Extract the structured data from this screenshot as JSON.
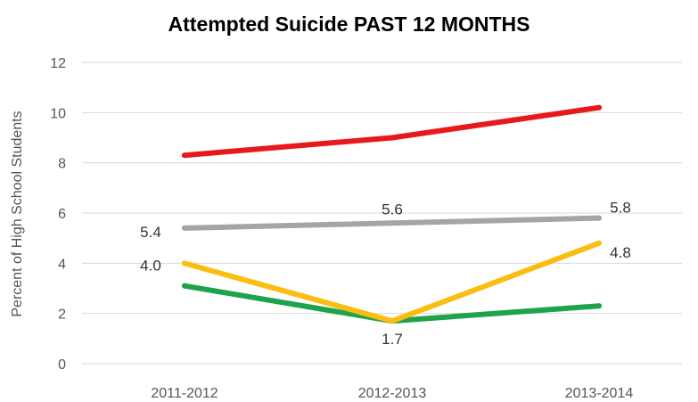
{
  "chart_data": {
    "type": "line",
    "title": "Attempted Suicide PAST 12 MONTHS",
    "xlabel": "",
    "ylabel": "Percent of High School Students",
    "categories": [
      "2011-2012",
      "2012-2013",
      "2013-2014"
    ],
    "ylim": [
      0,
      12
    ],
    "yticks": [
      "0",
      "2",
      "4",
      "6",
      "8",
      "10",
      "12"
    ],
    "grid": true,
    "series": [
      {
        "color": "#e8191c",
        "values": [
          8.3,
          9.0,
          10.2
        ],
        "labels": [
          "",
          "",
          ""
        ]
      },
      {
        "color": "#a5a5a5",
        "values": [
          5.4,
          5.6,
          5.8
        ],
        "labels": [
          "5.4",
          "5.6",
          "5.8"
        ]
      },
      {
        "color": "#1ea34a",
        "values": [
          3.1,
          1.7,
          2.3
        ],
        "labels": [
          "",
          "",
          ""
        ]
      },
      {
        "color": "#fbbd12",
        "values": [
          4.0,
          1.7,
          4.8
        ],
        "labels": [
          "4.0",
          "1.7",
          "4.8"
        ]
      }
    ]
  }
}
